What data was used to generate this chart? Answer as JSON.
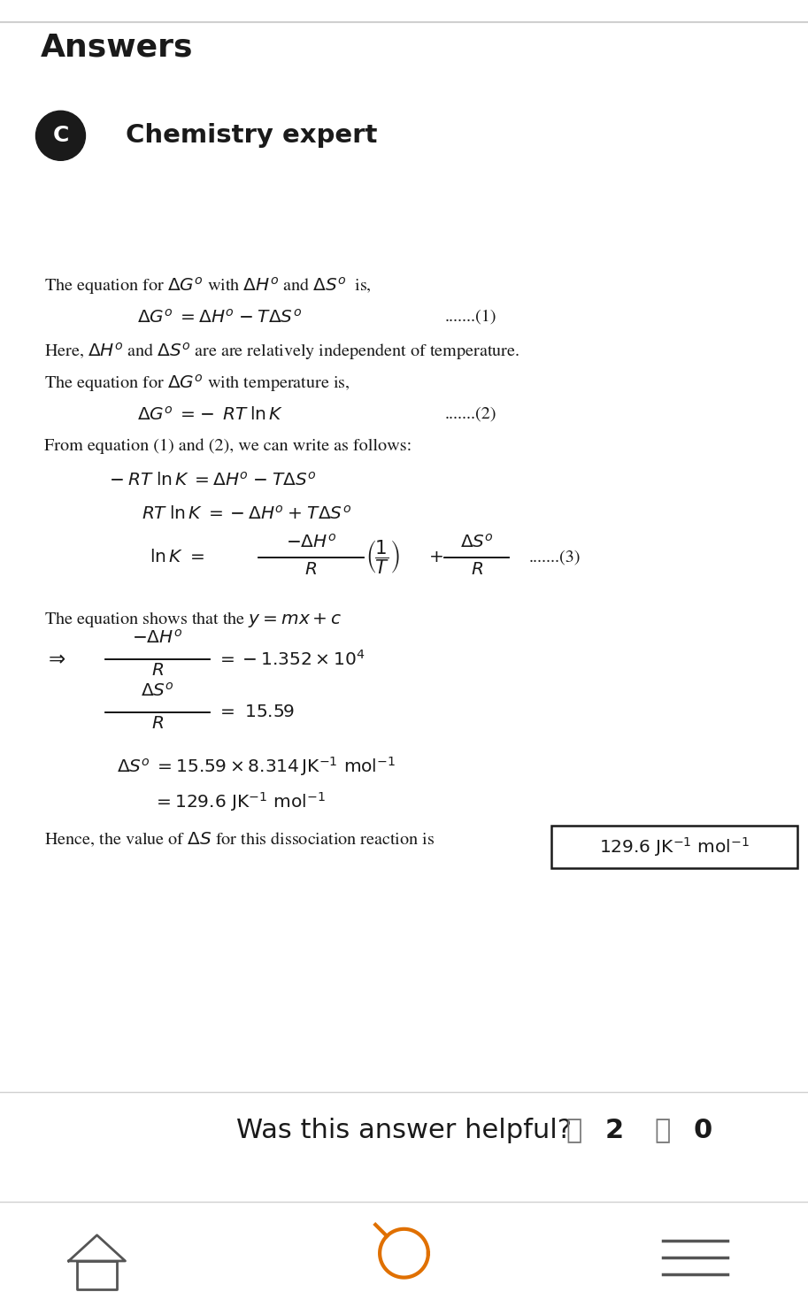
{
  "bg_color": "#ffffff",
  "answers_color": "#1a1a1a",
  "circle_color": "#1a1a1a",
  "circle_letter": "C",
  "expert_title": "Chemistry expert",
  "footer_text": "Was this answer helpful?",
  "footer_color": "#1a1a1a",
  "orange_color": "#e07000",
  "gray_color": "#777777",
  "fig_width": 9.13,
  "fig_height": 14.6,
  "dpi": 100
}
